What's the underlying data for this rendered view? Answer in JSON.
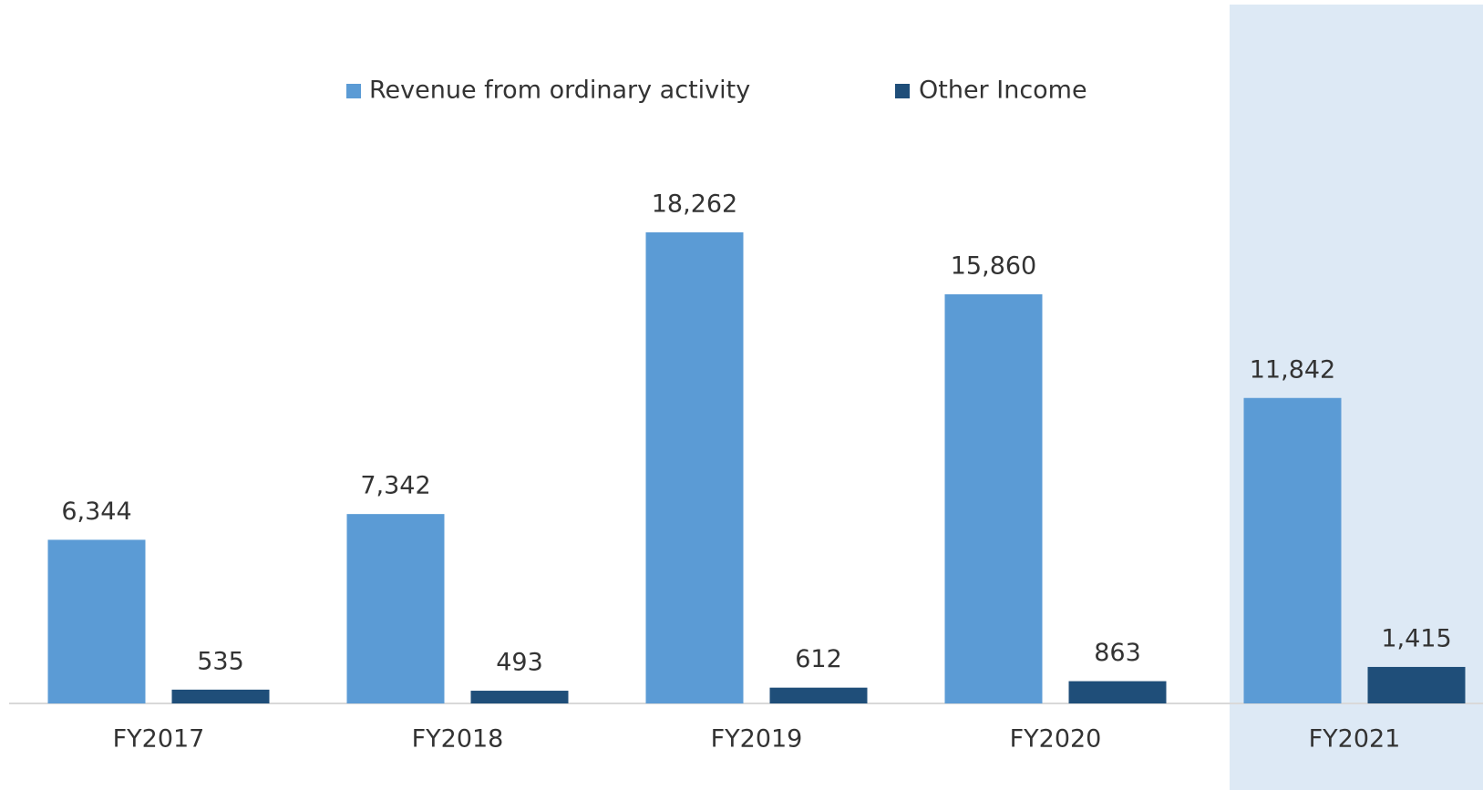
{
  "chart_data": {
    "type": "bar",
    "categories": [
      "FY2017",
      "FY2018",
      "FY2019",
      "FY2020",
      "FY2021"
    ],
    "series": [
      {
        "name": "Revenue from ordinary activity",
        "color": "#5b9bd5",
        "values": [
          6344,
          7342,
          18262,
          15860,
          11842
        ],
        "value_labels": [
          "6,344",
          "7,342",
          "18,262",
          "15,860",
          "11,842"
        ]
      },
      {
        "name": "Other Income",
        "color": "#1f4e79",
        "values": [
          535,
          493,
          612,
          863,
          1415
        ],
        "value_labels": [
          "535",
          "493",
          "612",
          "863",
          "1,415"
        ]
      }
    ],
    "highlight_color": "#dde9f5"
  }
}
